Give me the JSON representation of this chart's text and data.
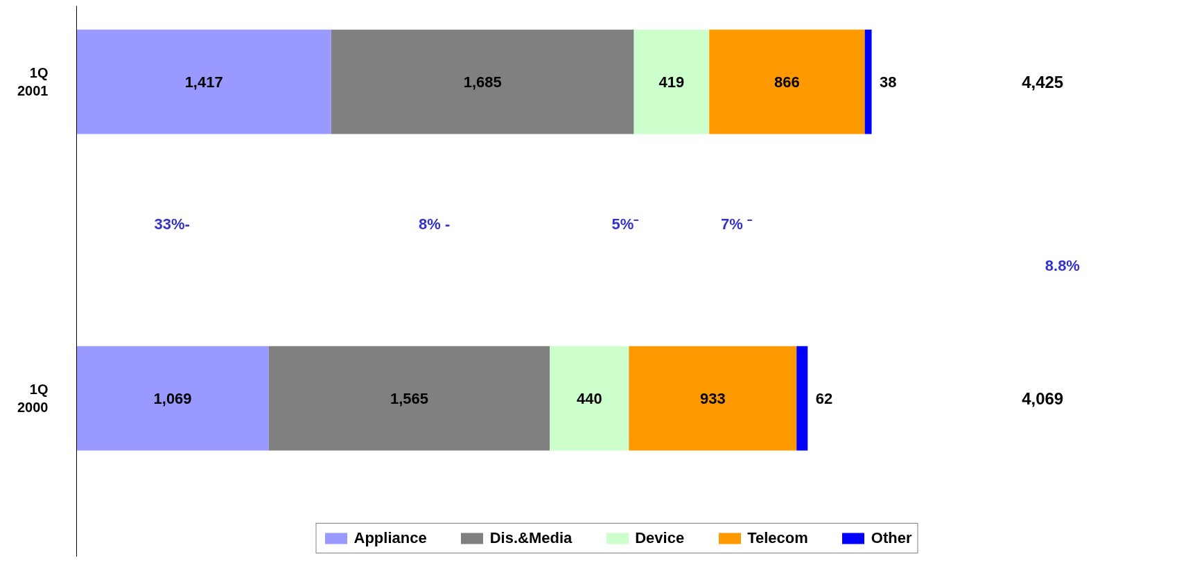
{
  "chart_data": {
    "type": "bar",
    "orientation": "horizontal",
    "stacked": true,
    "legend": "bottom",
    "categories": [
      "1Q\n2001",
      "1Q\n2000"
    ],
    "series": [
      {
        "name": "Appliance",
        "color": "#9999ff",
        "values": [
          1417,
          1069
        ],
        "value_labels": [
          "1,417",
          "1,069"
        ]
      },
      {
        "name": "Dis.&Media",
        "color": "#808080",
        "values": [
          1685,
          1565
        ],
        "value_labels": [
          "1,685",
          "1,565"
        ]
      },
      {
        "name": "Device",
        "color": "#ccffcc",
        "values": [
          419,
          440
        ],
        "value_labels": [
          "419",
          "440"
        ]
      },
      {
        "name": "Telecom",
        "color": "#ff9900",
        "values": [
          866,
          933
        ],
        "value_labels": [
          "866",
          "933"
        ]
      },
      {
        "name": "Other",
        "color": "#0000ff",
        "values": [
          38,
          62
        ],
        "value_labels": [
          "38",
          "62"
        ]
      }
    ],
    "annotations": [
      "33%-",
      "8% -",
      "5%⁻",
      "7% ⁻",
      "8.8%",
      "4,425",
      "4,069"
    ]
  }
}
